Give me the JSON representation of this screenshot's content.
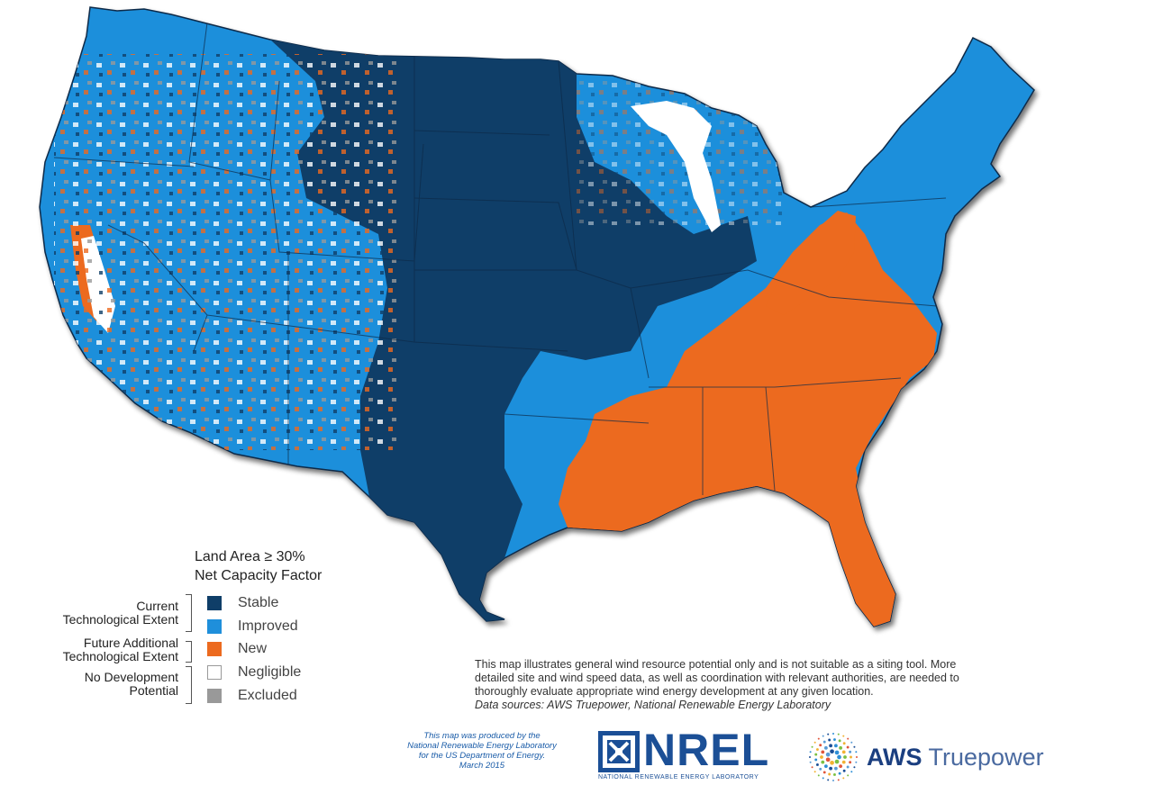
{
  "legend": {
    "title_line1": "Land Area ≥ 30%",
    "title_line2": "Net Capacity Factor",
    "groups": [
      {
        "line1": "Current",
        "line2": "Technological Extent"
      },
      {
        "line1": "Future Additional",
        "line2": "Technological Extent"
      },
      {
        "line1": "No Development",
        "line2": "Potential"
      }
    ],
    "categories": [
      {
        "label": "Stable",
        "color": "#0f3e68"
      },
      {
        "label": "Improved",
        "color": "#1f8fdb"
      },
      {
        "label": "New",
        "color": "#ec6a1f"
      },
      {
        "label": "Negligible",
        "color": "#ffffff"
      },
      {
        "label": "Excluded",
        "color": "#999999"
      }
    ]
  },
  "disclaimer": {
    "line1": "This map illustrates general wind resource potential only and is not suitable as a siting tool.  More",
    "line2": "detailed site and wind speed data, as well as coordination with relevant authorities, are needed to",
    "line3": "thoroughly evaluate appropriate wind energy development at any given location.",
    "sources": "Data sources: AWS Truepower, National Renewable Energy Laboratory"
  },
  "credit": {
    "line1": "This map was produced by the",
    "line2": "National Renewable Energy Laboratory",
    "line3": "for the US Department of Energy.",
    "line4": "March 2015"
  },
  "logos": {
    "nrel": "NREL",
    "nrel_sub": "NATIONAL RENEWABLE ENERGY LABORATORY",
    "aws_bold": "AWS",
    "aws_rest": "Truepower"
  }
}
